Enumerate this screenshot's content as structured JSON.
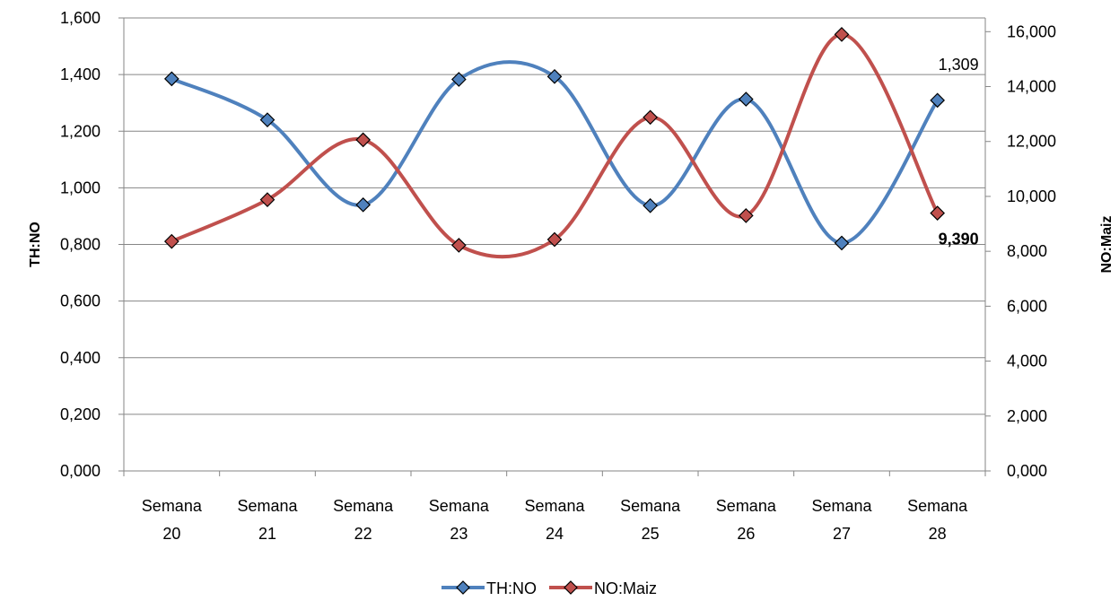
{
  "chart_data": {
    "type": "line",
    "smooth": true,
    "categories": [
      [
        "Semana",
        "20"
      ],
      [
        "Semana",
        "21"
      ],
      [
        "Semana",
        "22"
      ],
      [
        "Semana",
        "23"
      ],
      [
        "Semana",
        "24"
      ],
      [
        "Semana",
        "25"
      ],
      [
        "Semana",
        "26"
      ],
      [
        "Semana",
        "27"
      ],
      [
        "Semana",
        "28"
      ]
    ],
    "series": [
      {
        "name": "TH:NO",
        "axis": "left",
        "color": "#4F81BD",
        "marker_fill": "#4F81BD",
        "values": [
          1.385,
          1.24,
          0.94,
          1.383,
          1.393,
          0.937,
          1.313,
          0.805,
          1.309
        ]
      },
      {
        "name": "NO:Maiz",
        "axis": "right",
        "color": "#C0504D",
        "marker_fill": "#C0504D",
        "values": [
          8.36,
          9.88,
          12.06,
          8.22,
          8.43,
          12.88,
          9.3,
          15.9,
          9.39
        ]
      }
    ],
    "y_left": {
      "label": "TH:NO",
      "range": [
        0,
        1.6
      ],
      "ticks": [
        "0,000",
        "0,200",
        "0,400",
        "0,600",
        "0,800",
        "1,000",
        "1,200",
        "1,400",
        "1,600"
      ]
    },
    "y_right": {
      "label": "NO:Maiz",
      "range": [
        0,
        16.5
      ],
      "ticks": [
        "0,000",
        "2,000",
        "4,000",
        "6,000",
        "8,000",
        "10,000",
        "12,000",
        "14,000",
        "16,000"
      ]
    },
    "annotations": [
      {
        "series": 0,
        "index": 8,
        "text": "1,309",
        "bold": false
      },
      {
        "series": 1,
        "index": 8,
        "text": "9,390",
        "bold": true
      }
    ],
    "grid": "horizontal",
    "legend_position": "bottom"
  }
}
